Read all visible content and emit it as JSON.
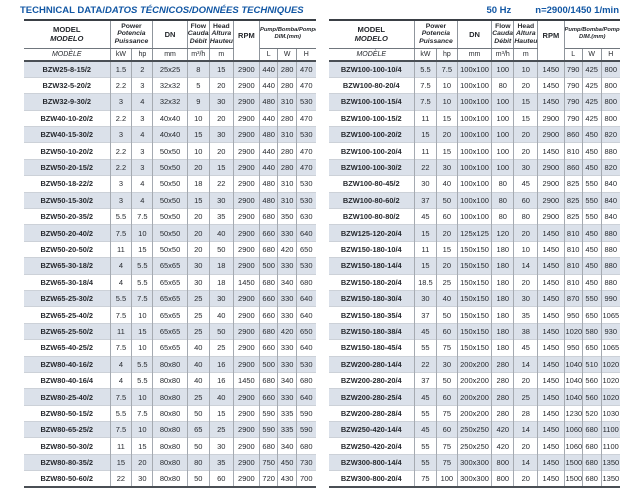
{
  "page": {
    "title_main": "TECHNICAL DATA/",
    "title_italic": "DATOS TÉCNICOS/DONNÉES TECHNIQUES",
    "frequency": "50 Hz",
    "speed": "n=2900/1450 1/min"
  },
  "colors": {
    "accent_blue": "#1257a4",
    "row_stripe": "#dbe1ea"
  },
  "header": {
    "model": [
      "MODEL",
      "MODELO",
      "MODÈLE"
    ],
    "power": [
      "Power",
      "Potencia",
      "Puissance"
    ],
    "power_units": [
      "kW",
      "hp"
    ],
    "dn": "DN",
    "dn_unit": "mm",
    "flow": [
      "Flow",
      "Caudal",
      "Débit"
    ],
    "flow_unit": "m³/h",
    "head": [
      "Head",
      "Altura",
      "Hauteur"
    ],
    "head_unit": "m",
    "rpm": "RPM",
    "dim": [
      "Pump/Bomba/Pompe",
      "DIM.(mm)"
    ],
    "dim_units": [
      "L",
      "W",
      "H"
    ]
  },
  "tables": {
    "left": {
      "rows": [
        [
          "BZW25-8-15/2",
          "1.5",
          "2",
          "25x25",
          "8",
          "15",
          "2900",
          "440",
          "280",
          "470"
        ],
        [
          "BZW32-5-20/2",
          "2.2",
          "3",
          "32x32",
          "5",
          "20",
          "2900",
          "440",
          "280",
          "470"
        ],
        [
          "BZW32-9-30/2",
          "3",
          "4",
          "32x32",
          "9",
          "30",
          "2900",
          "480",
          "310",
          "530"
        ],
        [
          "BZW40-10-20/2",
          "2.2",
          "3",
          "40x40",
          "10",
          "20",
          "2900",
          "440",
          "280",
          "470"
        ],
        [
          "BZW40-15-30/2",
          "3",
          "4",
          "40x40",
          "15",
          "30",
          "2900",
          "480",
          "310",
          "530"
        ],
        [
          "BZW50-10-20/2",
          "2.2",
          "3",
          "50x50",
          "10",
          "20",
          "2900",
          "440",
          "280",
          "470"
        ],
        [
          "BZW50-20-15/2",
          "2.2",
          "3",
          "50x50",
          "20",
          "15",
          "2900",
          "440",
          "280",
          "470"
        ],
        [
          "BZW50-18-22/2",
          "3",
          "4",
          "50x50",
          "18",
          "22",
          "2900",
          "480",
          "310",
          "530"
        ],
        [
          "BZW50-15-30/2",
          "3",
          "4",
          "50x50",
          "15",
          "30",
          "2900",
          "480",
          "310",
          "530"
        ],
        [
          "BZW50-20-35/2",
          "5.5",
          "7.5",
          "50x50",
          "20",
          "35",
          "2900",
          "680",
          "350",
          "630"
        ],
        [
          "BZW50-20-40/2",
          "7.5",
          "10",
          "50x50",
          "20",
          "40",
          "2900",
          "660",
          "330",
          "640"
        ],
        [
          "BZW50-20-50/2",
          "11",
          "15",
          "50x50",
          "20",
          "50",
          "2900",
          "680",
          "420",
          "650"
        ],
        [
          "BZW65-30-18/2",
          "4",
          "5.5",
          "65x65",
          "30",
          "18",
          "2900",
          "500",
          "330",
          "530"
        ],
        [
          "BZW65-30-18/4",
          "4",
          "5.5",
          "65x65",
          "30",
          "18",
          "1450",
          "680",
          "340",
          "680"
        ],
        [
          "BZW65-25-30/2",
          "5.5",
          "7.5",
          "65x65",
          "25",
          "30",
          "2900",
          "660",
          "330",
          "640"
        ],
        [
          "BZW65-25-40/2",
          "7.5",
          "10",
          "65x65",
          "25",
          "40",
          "2900",
          "660",
          "330",
          "640"
        ],
        [
          "BZW65-25-50/2",
          "11",
          "15",
          "65x65",
          "25",
          "50",
          "2900",
          "680",
          "420",
          "650"
        ],
        [
          "BZW65-40-25/2",
          "7.5",
          "10",
          "65x65",
          "40",
          "25",
          "2900",
          "660",
          "330",
          "640"
        ],
        [
          "BZW80-40-16/2",
          "4",
          "5.5",
          "80x80",
          "40",
          "16",
          "2900",
          "500",
          "330",
          "530"
        ],
        [
          "BZW80-40-16/4",
          "4",
          "5.5",
          "80x80",
          "40",
          "16",
          "1450",
          "680",
          "340",
          "680"
        ],
        [
          "BZW80-25-40/2",
          "7.5",
          "10",
          "80x80",
          "25",
          "40",
          "2900",
          "660",
          "330",
          "640"
        ],
        [
          "BZW80-50-15/2",
          "5.5",
          "7.5",
          "80x80",
          "50",
          "15",
          "2900",
          "590",
          "335",
          "590"
        ],
        [
          "BZW80-65-25/2",
          "7.5",
          "10",
          "80x80",
          "65",
          "25",
          "2900",
          "590",
          "335",
          "590"
        ],
        [
          "BZW80-50-30/2",
          "11",
          "15",
          "80x80",
          "50",
          "30",
          "2900",
          "680",
          "340",
          "680"
        ],
        [
          "BZW80-80-35/2",
          "15",
          "20",
          "80x80",
          "80",
          "35",
          "2900",
          "750",
          "450",
          "730"
        ],
        [
          "BZW80-50-60/2",
          "22",
          "30",
          "80x80",
          "50",
          "60",
          "2900",
          "720",
          "430",
          "700"
        ]
      ]
    },
    "right": {
      "rows": [
        [
          "BZW100-100-10/4",
          "5.5",
          "7.5",
          "100x100",
          "100",
          "10",
          "1450",
          "790",
          "425",
          "800"
        ],
        [
          "BZW100-80-20/4",
          "7.5",
          "10",
          "100x100",
          "80",
          "20",
          "1450",
          "790",
          "425",
          "800"
        ],
        [
          "BZW100-100-15/4",
          "7.5",
          "10",
          "100x100",
          "100",
          "15",
          "1450",
          "790",
          "425",
          "800"
        ],
        [
          "BZW100-100-15/2",
          "11",
          "15",
          "100x100",
          "100",
          "15",
          "2900",
          "790",
          "425",
          "800"
        ],
        [
          "BZW100-100-20/2",
          "15",
          "20",
          "100x100",
          "100",
          "20",
          "2900",
          "860",
          "450",
          "820"
        ],
        [
          "BZW100-100-20/4",
          "11",
          "15",
          "100x100",
          "100",
          "20",
          "1450",
          "810",
          "450",
          "880"
        ],
        [
          "BZW100-100-30/2",
          "22",
          "30",
          "100x100",
          "100",
          "30",
          "2900",
          "860",
          "450",
          "820"
        ],
        [
          "BZW100-80-45/2",
          "30",
          "40",
          "100x100",
          "80",
          "45",
          "2900",
          "825",
          "550",
          "840"
        ],
        [
          "BZW100-80-60/2",
          "37",
          "50",
          "100x100",
          "80",
          "60",
          "2900",
          "825",
          "550",
          "840"
        ],
        [
          "BZW100-80-80/2",
          "45",
          "60",
          "100x100",
          "80",
          "80",
          "2900",
          "825",
          "550",
          "840"
        ],
        [
          "BZW125-120-20/4",
          "15",
          "20",
          "125x125",
          "120",
          "20",
          "1450",
          "810",
          "450",
          "880"
        ],
        [
          "BZW150-180-10/4",
          "11",
          "15",
          "150x150",
          "180",
          "10",
          "1450",
          "810",
          "450",
          "880"
        ],
        [
          "BZW150-180-14/4",
          "15",
          "20",
          "150x150",
          "180",
          "14",
          "1450",
          "810",
          "450",
          "880"
        ],
        [
          "BZW150-180-20/4",
          "18.5",
          "25",
          "150x150",
          "180",
          "20",
          "1450",
          "810",
          "450",
          "880"
        ],
        [
          "BZW150-180-30/4",
          "30",
          "40",
          "150x150",
          "180",
          "30",
          "1450",
          "870",
          "550",
          "990"
        ],
        [
          "BZW150-180-35/4",
          "37",
          "50",
          "150x150",
          "180",
          "35",
          "1450",
          "950",
          "650",
          "1065"
        ],
        [
          "BZW150-180-38/4",
          "45",
          "60",
          "150x150",
          "180",
          "38",
          "1450",
          "1020",
          "580",
          "930"
        ],
        [
          "BZW150-180-45/4",
          "55",
          "75",
          "150x150",
          "180",
          "45",
          "1450",
          "950",
          "650",
          "1065"
        ],
        [
          "BZW200-280-14/4",
          "22",
          "30",
          "200x200",
          "280",
          "14",
          "1450",
          "1040",
          "510",
          "1020"
        ],
        [
          "BZW200-280-20/4",
          "37",
          "50",
          "200x200",
          "280",
          "20",
          "1450",
          "1040",
          "560",
          "1020"
        ],
        [
          "BZW200-280-25/4",
          "45",
          "60",
          "200x200",
          "280",
          "25",
          "1450",
          "1040",
          "560",
          "1020"
        ],
        [
          "BZW200-280-28/4",
          "55",
          "75",
          "200x200",
          "280",
          "28",
          "1450",
          "1230",
          "520",
          "1030"
        ],
        [
          "BZW250-420-14/4",
          "45",
          "60",
          "250x250",
          "420",
          "14",
          "1450",
          "1060",
          "680",
          "1100"
        ],
        [
          "BZW250-420-20/4",
          "55",
          "75",
          "250x250",
          "420",
          "20",
          "1450",
          "1060",
          "680",
          "1100"
        ],
        [
          "BZW300-800-14/4",
          "55",
          "75",
          "300x300",
          "800",
          "14",
          "1450",
          "1500",
          "680",
          "1350"
        ],
        [
          "BZW300-800-20/4",
          "75",
          "100",
          "300x300",
          "800",
          "20",
          "1450",
          "1500",
          "680",
          "1350"
        ]
      ]
    }
  }
}
